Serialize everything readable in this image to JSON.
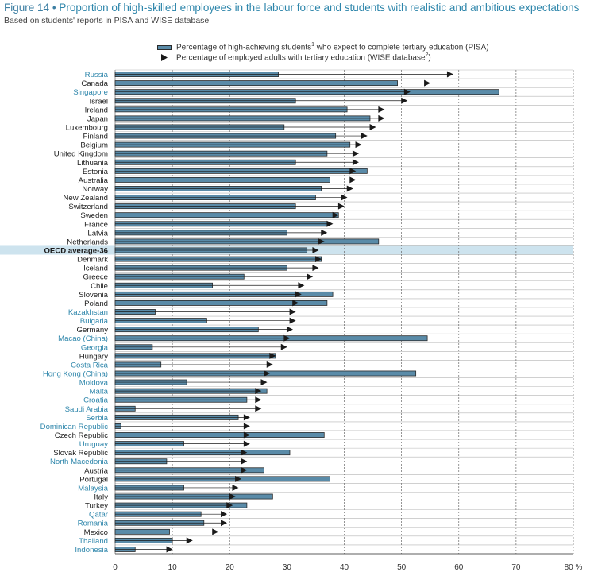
{
  "header": {
    "figure_label": "Figure 14",
    "separator": "•",
    "title": "Proportion of high-skilled employees in the labour force and students with realistic and ambitious expectations",
    "subtitle": "Based on students' reports in PISA and WISE database"
  },
  "legend": {
    "bar_label_a": "Percentage of high-achieving students",
    "bar_sup": "1",
    "bar_label_b": " who expect to complete tertiary education (PISA)",
    "tri_label_a": "Percentage of employed adults with tertiary education (WISE database",
    "tri_sup": "2",
    "tri_label_b": ")"
  },
  "colors": {
    "bar_fill": "#5a8ba8",
    "bar_stroke": "#2b2b2b",
    "oecd_label": "#2b6cb0",
    "non_oecd_label": "#2e86ab",
    "highlight_band": "#cde3ee",
    "arrow": "#1a1a1a"
  },
  "chart_data": {
    "type": "bar",
    "orientation": "horizontal",
    "xlim": [
      0,
      80
    ],
    "x_ticks": [
      0,
      10,
      20,
      30,
      40,
      50,
      60,
      70,
      80
    ],
    "x_unit": "%",
    "grid": "vertical dashed",
    "series": [
      {
        "name": "Percentage of high-achieving students who expect to complete tertiary education (PISA)",
        "mark": "bar"
      },
      {
        "name": "Percentage of employed adults with tertiary education (WISE database)",
        "mark": "triangle"
      }
    ],
    "rows": [
      {
        "country": "Russia",
        "pisa": 28.5,
        "wise": 58.5,
        "oecd": false
      },
      {
        "country": "Canada",
        "pisa": 49.3,
        "wise": 54.5,
        "oecd": true
      },
      {
        "country": "Singapore",
        "pisa": 67.0,
        "wise": 51.0,
        "oecd": false
      },
      {
        "country": "Israel",
        "pisa": 31.5,
        "wise": 50.5,
        "oecd": true
      },
      {
        "country": "Ireland",
        "pisa": 40.5,
        "wise": 46.5,
        "oecd": true
      },
      {
        "country": "Japan",
        "pisa": 44.5,
        "wise": 46.5,
        "oecd": true
      },
      {
        "country": "Luxembourg",
        "pisa": 29.5,
        "wise": 45.0,
        "oecd": true
      },
      {
        "country": "Finland",
        "pisa": 38.5,
        "wise": 43.5,
        "oecd": true
      },
      {
        "country": "Belgium",
        "pisa": 41.0,
        "wise": 42.5,
        "oecd": true
      },
      {
        "country": "United Kingdom",
        "pisa": 37.0,
        "wise": 42.0,
        "oecd": true
      },
      {
        "country": "Lithuania",
        "pisa": 31.5,
        "wise": 42.0,
        "oecd": true
      },
      {
        "country": "Estonia",
        "pisa": 44.0,
        "wise": 41.5,
        "oecd": true
      },
      {
        "country": "Australia",
        "pisa": 37.5,
        "wise": 41.5,
        "oecd": true
      },
      {
        "country": "Norway",
        "pisa": 36.0,
        "wise": 41.0,
        "oecd": true
      },
      {
        "country": "New Zealand",
        "pisa": 35.0,
        "wise": 40.0,
        "oecd": true
      },
      {
        "country": "Switzerland",
        "pisa": 31.5,
        "wise": 39.5,
        "oecd": true
      },
      {
        "country": "Sweden",
        "pisa": 39.0,
        "wise": 38.5,
        "oecd": true
      },
      {
        "country": "France",
        "pisa": 37.0,
        "wise": 37.5,
        "oecd": true
      },
      {
        "country": "Latvia",
        "pisa": 30.0,
        "wise": 36.5,
        "oecd": true
      },
      {
        "country": "Netherlands",
        "pisa": 46.0,
        "wise": 36.0,
        "oecd": true
      },
      {
        "country": "OECD average-36",
        "pisa": 33.5,
        "wise": 35.0,
        "oecd": true,
        "highlight": true
      },
      {
        "country": "Denmark",
        "pisa": 36.0,
        "wise": 35.5,
        "oecd": true
      },
      {
        "country": "Iceland",
        "pisa": 30.0,
        "wise": 35.0,
        "oecd": true
      },
      {
        "country": "Greece",
        "pisa": 22.5,
        "wise": 34.0,
        "oecd": true
      },
      {
        "country": "Chile",
        "pisa": 17.0,
        "wise": 32.5,
        "oecd": true
      },
      {
        "country": "Slovenia",
        "pisa": 38.0,
        "wise": 32.0,
        "oecd": true
      },
      {
        "country": "Poland",
        "pisa": 37.0,
        "wise": 31.5,
        "oecd": true
      },
      {
        "country": "Kazakhstan",
        "pisa": 7.0,
        "wise": 31.0,
        "oecd": false
      },
      {
        "country": "Bulgaria",
        "pisa": 16.0,
        "wise": 31.0,
        "oecd": false
      },
      {
        "country": "Germany",
        "pisa": 25.0,
        "wise": 30.5,
        "oecd": true
      },
      {
        "country": "Macao (China)",
        "pisa": 54.5,
        "wise": 30.0,
        "oecd": false
      },
      {
        "country": "Georgia",
        "pisa": 6.5,
        "wise": 29.5,
        "oecd": false
      },
      {
        "country": "Hungary",
        "pisa": 28.0,
        "wise": 27.5,
        "oecd": true
      },
      {
        "country": "Costa Rica",
        "pisa": 8.0,
        "wise": 27.0,
        "oecd": false
      },
      {
        "country": "Hong Kong (China)",
        "pisa": 52.5,
        "wise": 26.5,
        "oecd": false
      },
      {
        "country": "Moldova",
        "pisa": 12.5,
        "wise": 26.0,
        "oecd": false
      },
      {
        "country": "Malta",
        "pisa": 26.5,
        "wise": 25.0,
        "oecd": false
      },
      {
        "country": "Croatia",
        "pisa": 23.0,
        "wise": 25.0,
        "oecd": false
      },
      {
        "country": "Saudi Arabia",
        "pisa": 3.5,
        "wise": 25.0,
        "oecd": false
      },
      {
        "country": "Serbia",
        "pisa": 21.5,
        "wise": 23.0,
        "oecd": false
      },
      {
        "country": "Dominican Republic",
        "pisa": 1.0,
        "wise": 23.0,
        "oecd": false
      },
      {
        "country": "Czech Republic",
        "pisa": 36.5,
        "wise": 23.0,
        "oecd": true
      },
      {
        "country": "Uruguay",
        "pisa": 12.0,
        "wise": 23.0,
        "oecd": false
      },
      {
        "country": "Slovak Republic",
        "pisa": 30.5,
        "wise": 22.5,
        "oecd": true
      },
      {
        "country": "North Macedonia",
        "pisa": 9.0,
        "wise": 22.5,
        "oecd": false
      },
      {
        "country": "Austria",
        "pisa": 26.0,
        "wise": 22.5,
        "oecd": true
      },
      {
        "country": "Portugal",
        "pisa": 37.5,
        "wise": 21.5,
        "oecd": true
      },
      {
        "country": "Malaysia",
        "pisa": 12.0,
        "wise": 21.0,
        "oecd": false
      },
      {
        "country": "Italy",
        "pisa": 27.5,
        "wise": 20.5,
        "oecd": true
      },
      {
        "country": "Turkey",
        "pisa": 23.0,
        "wise": 20.0,
        "oecd": true
      },
      {
        "country": "Qatar",
        "pisa": 15.0,
        "wise": 19.0,
        "oecd": false
      },
      {
        "country": "Romania",
        "pisa": 15.5,
        "wise": 19.0,
        "oecd": false
      },
      {
        "country": "Mexico",
        "pisa": 9.5,
        "wise": 17.5,
        "oecd": true
      },
      {
        "country": "Thailand",
        "pisa": 10.0,
        "wise": 13.0,
        "oecd": false
      },
      {
        "country": "Indonesia",
        "pisa": 3.5,
        "wise": 9.5,
        "oecd": false
      }
    ]
  }
}
